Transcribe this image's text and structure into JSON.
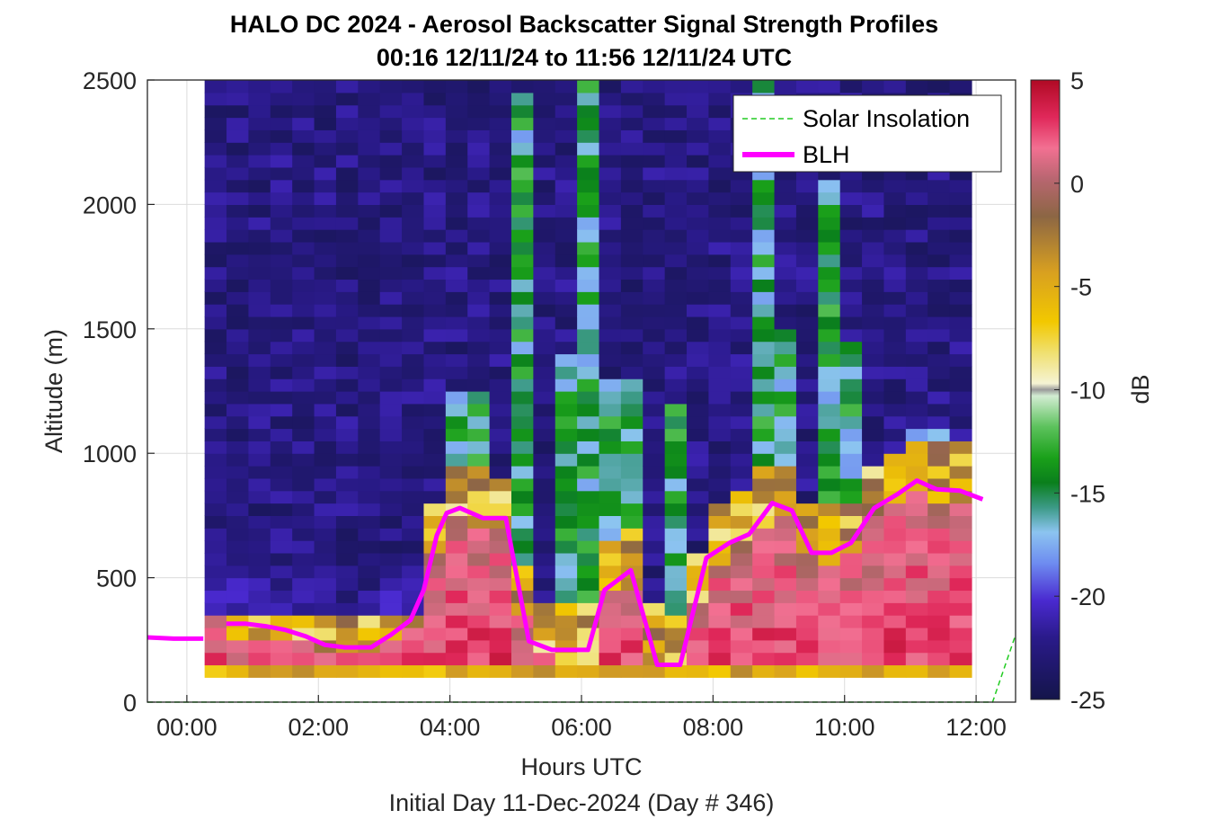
{
  "chart_data": {
    "type": "heatmap",
    "title_line1": "HALO DC 2024 - Aerosol Backscatter Signal Strength Profiles",
    "title_line2": "00:16 12/11/24 to 11:56 12/11/24  UTC",
    "xlabel": "Hours UTC",
    "ylabel": "Altitude (m)",
    "footer": "Initial Day 11-Dec-2024 (Day # 346)",
    "xlim": [
      -0.6,
      12.6
    ],
    "ylim": [
      0,
      2500
    ],
    "x_ticks": [
      0,
      2,
      4,
      6,
      8,
      10,
      12
    ],
    "x_tick_labels": [
      "00:00",
      "02:00",
      "04:00",
      "06:00",
      "08:00",
      "10:00",
      "12:00"
    ],
    "y_ticks": [
      0,
      500,
      1000,
      1500,
      2000,
      2500
    ],
    "y_tick_labels": [
      "0",
      "500",
      "1000",
      "1500",
      "2000",
      "2500"
    ],
    "grid": true,
    "legend_placement": "top-right",
    "colorbar": {
      "label": "dB",
      "range": [
        -25,
        5
      ],
      "ticks": [
        5,
        0,
        -5,
        -10,
        -15,
        -20,
        -25
      ],
      "tick_labels": [
        "5",
        "0",
        "-5",
        "-10",
        "-15",
        "-20",
        "-25"
      ]
    },
    "heatmap": {
      "time_start": 0.27,
      "time_end": 11.93,
      "columns": 35,
      "alt_start": 100,
      "alt_end": 2500,
      "rows": 48
    },
    "series": [
      {
        "name": "Solar Insolation",
        "style": "dashed",
        "color": "#22cc22",
        "x": [
          -0.6,
          12.25,
          12.6
        ],
        "y": [
          0,
          0,
          270
        ]
      },
      {
        "name": "BLH",
        "style": "solid",
        "color": "#ff00ff",
        "x": [
          -0.6,
          -0.2,
          0.25,
          null,
          0.6,
          0.9,
          1.2,
          1.5,
          1.8,
          2.1,
          2.4,
          2.8,
          3.1,
          3.4,
          3.6,
          3.8,
          3.95,
          4.15,
          4.5,
          4.85,
          5.2,
          5.55,
          5.85,
          6.1,
          6.35,
          6.75,
          7.15,
          7.5,
          7.9,
          8.25,
          8.55,
          8.9,
          9.2,
          9.5,
          9.8,
          10.1,
          10.45,
          10.8,
          11.1,
          11.4,
          11.75,
          12.1
        ],
        "y": [
          260,
          255,
          255,
          null,
          315,
          315,
          305,
          290,
          265,
          230,
          220,
          220,
          270,
          330,
          450,
          670,
          760,
          780,
          740,
          740,
          245,
          210,
          210,
          210,
          450,
          530,
          150,
          150,
          580,
          640,
          675,
          800,
          770,
          600,
          600,
          640,
          780,
          835,
          890,
          855,
          850,
          815
        ]
      }
    ]
  }
}
